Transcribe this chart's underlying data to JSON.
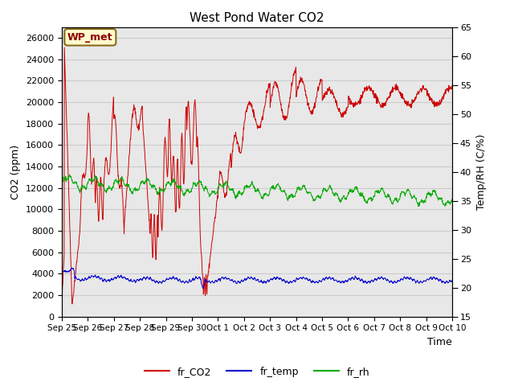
{
  "title": "West Pond Water CO2",
  "xlabel": "Time",
  "ylabel_left": "CO2 (ppm)",
  "ylabel_right": "Temp/RH (C/%)",
  "annotation_text": "WP_met",
  "annotation_color": "#8B0000",
  "annotation_bg": "#FFFACD",
  "annotation_border": "#8B6914",
  "x_tick_labels": [
    "Sep 25",
    "Sep 26",
    "Sep 27",
    "Sep 28",
    "Sep 29",
    "Sep 30",
    "Oct 1",
    "Oct 2",
    "Oct 3",
    "Oct 4",
    "Oct 5",
    "Oct 6",
    "Oct 7",
    "Oct 8",
    "Oct 9",
    "Oct 10"
  ],
  "ylim_left": [
    0,
    27000
  ],
  "ylim_right": [
    15,
    65
  ],
  "yticks_left": [
    0,
    2000,
    4000,
    6000,
    8000,
    10000,
    12000,
    14000,
    16000,
    18000,
    20000,
    22000,
    24000,
    26000
  ],
  "yticks_right": [
    15,
    20,
    25,
    30,
    35,
    40,
    45,
    50,
    55,
    60,
    65
  ],
  "grid_color": "#cccccc",
  "bg_color": "#e8e8e8",
  "line_co2_color": "#cc0000",
  "line_temp_color": "#0000cc",
  "line_rh_color": "#00aa00",
  "legend_labels": [
    "fr_CO2",
    "fr_temp",
    "fr_rh"
  ],
  "legend_colors": [
    "#cc0000",
    "#0000cc",
    "#00aa00"
  ]
}
